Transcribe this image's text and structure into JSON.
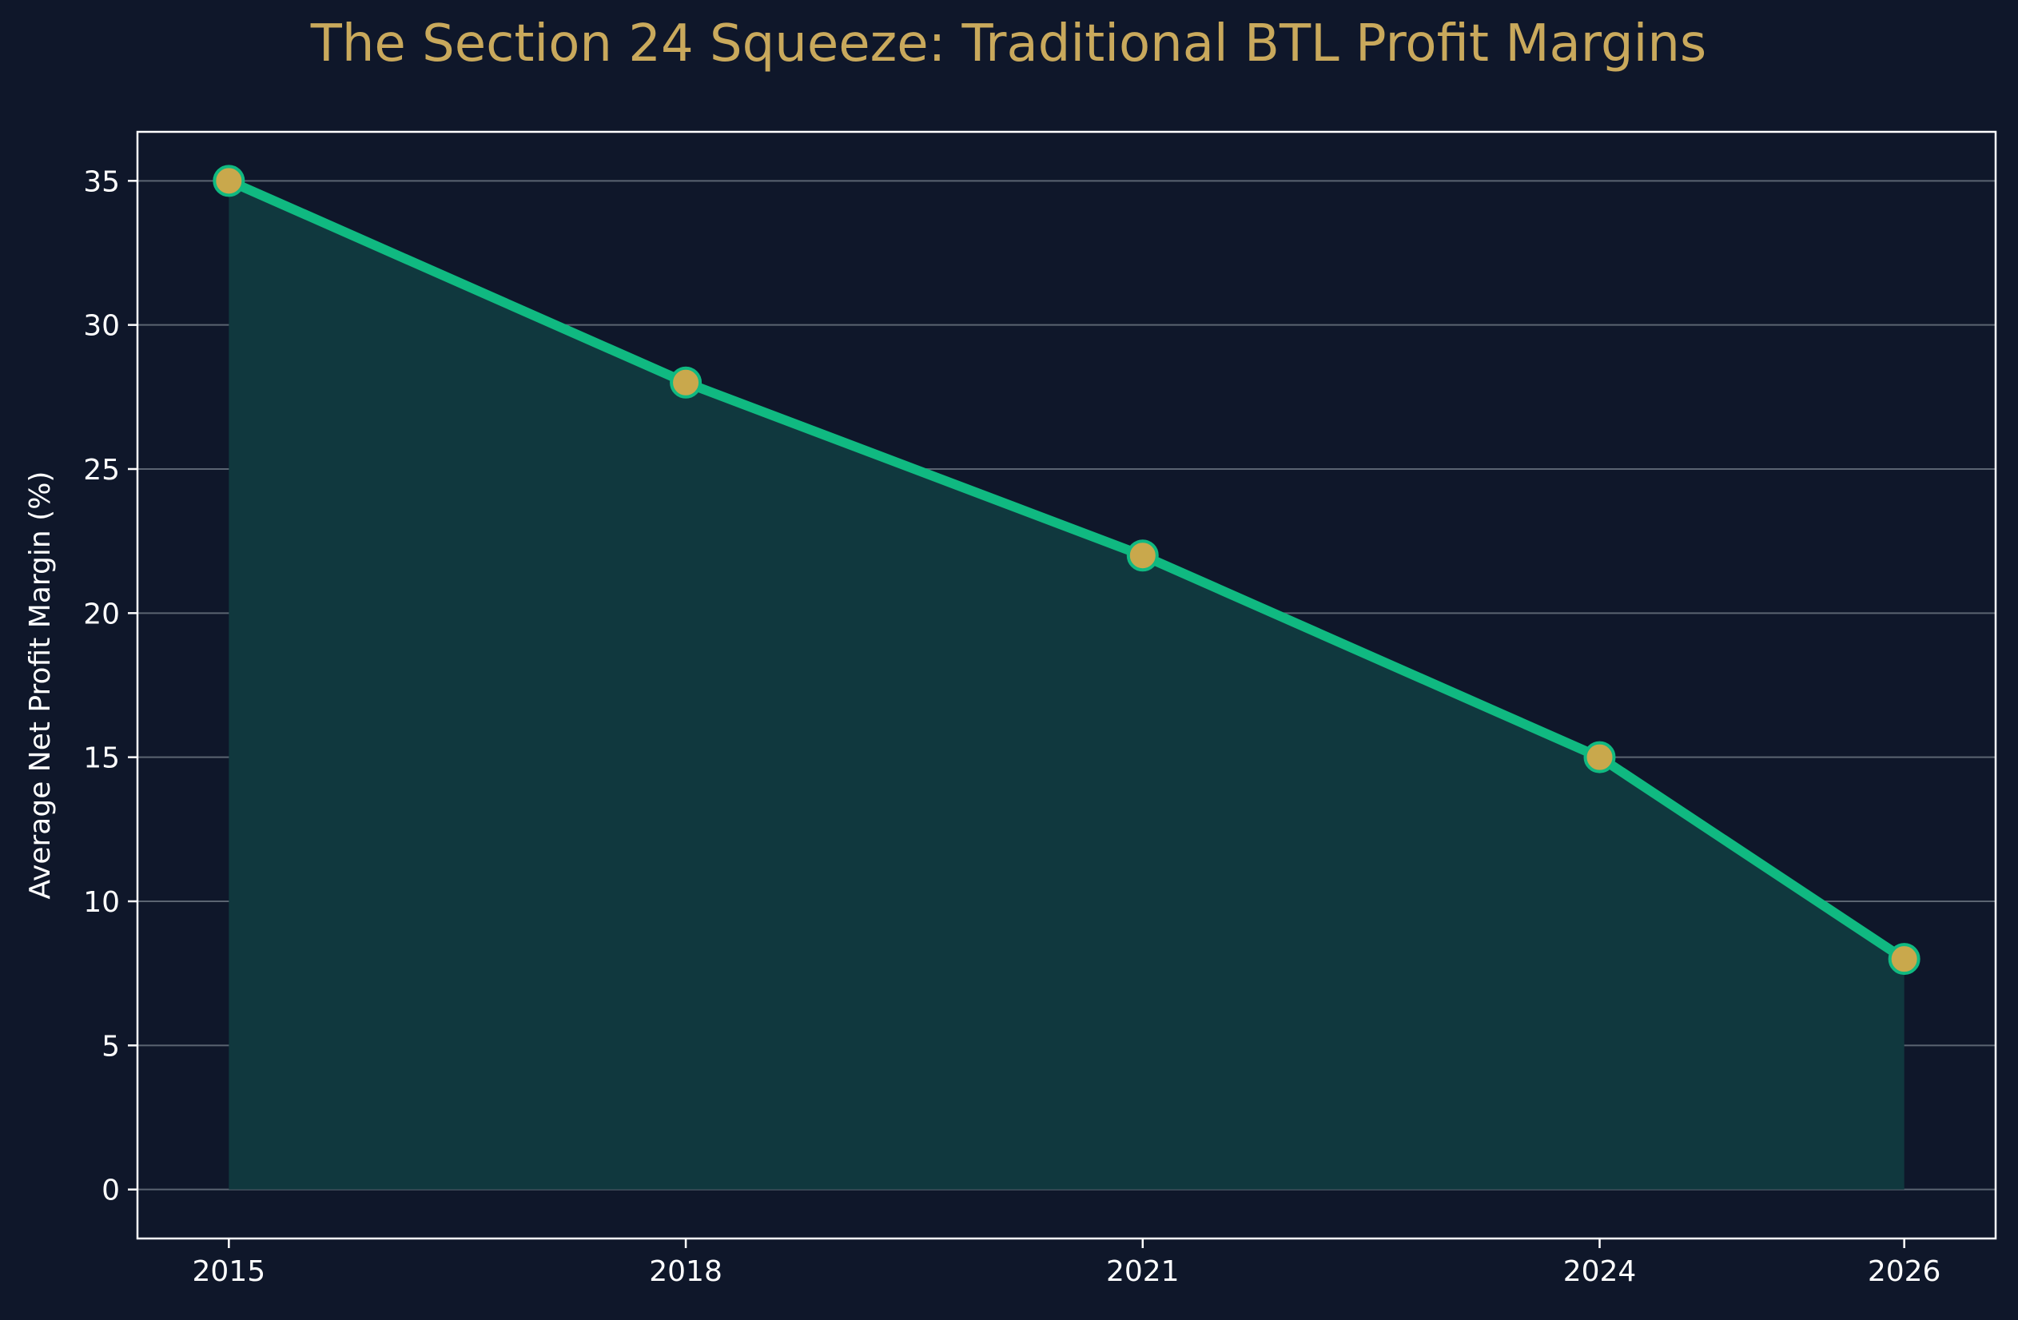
{
  "chart_data": {
    "type": "line",
    "title": "The Section 24 Squeeze: Traditional BTL Profit Margins",
    "xlabel": "",
    "ylabel": "Average Net Profit Margin (%)",
    "x": [
      2015,
      2018,
      2021,
      2024,
      2026
    ],
    "x_tick_labels": [
      "2015",
      "2018",
      "2021",
      "2024",
      "2026"
    ],
    "series": [
      {
        "values": [
          35,
          28,
          22,
          15,
          8
        ]
      }
    ],
    "y_ticks": [
      0,
      5,
      10,
      15,
      20,
      25,
      30,
      35
    ],
    "y_tick_labels": [
      "0",
      "5",
      "10",
      "15",
      "20",
      "25",
      "30",
      "35"
    ],
    "ylim": [
      -1.7,
      36.7
    ],
    "xlim": [
      2014.4,
      2026.6
    ],
    "grid": "horizontal",
    "fill_under_line": true,
    "colors": {
      "background": "#0f172a",
      "line": "#10b981",
      "marker_fill": "#c9a84c",
      "fill": "#10383e",
      "title": "#c9a95c",
      "grid": "#5b6472",
      "axis": "#ffffff",
      "text": "#ffffff"
    }
  }
}
